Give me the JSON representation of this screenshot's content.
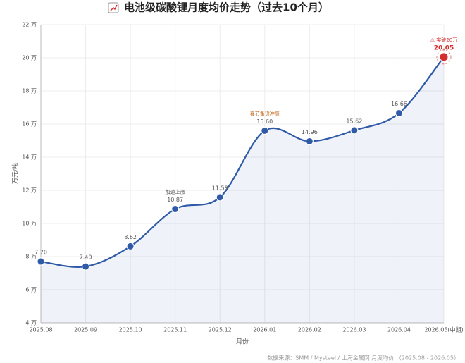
{
  "chart_data": {
    "type": "line",
    "title": "电池级碳酸锂月度均价走势（过去10个月）",
    "y_label": "万元/吨",
    "x_label": "月份",
    "source": "数据来源：SMM / Mysteel / 上海金属网 月度均价 （2025.08 - 2026.05）",
    "categories": [
      "2025.08",
      "2025.09",
      "2025.10",
      "2025.11",
      "2025.12",
      "2026.01",
      "2026.02",
      "2026.03",
      "2026.04",
      "2026.05(中期)"
    ],
    "values": [
      7.7,
      7.4,
      8.62,
      10.87,
      11.58,
      15.6,
      14.96,
      15.62,
      16.66,
      20.05
    ],
    "value_labels": [
      "7.70",
      "7.40",
      "8.62",
      "10.87",
      "11.58",
      "15.60",
      "14.96",
      "15.62",
      "16.66",
      "20.05"
    ],
    "annotations": [
      null,
      null,
      null,
      "加速上涨",
      null,
      "春节备货冲高",
      null,
      null,
      null,
      "⚠ 突破20万"
    ],
    "color": "#2f5aa8",
    "highlight_color": "#d32f2f",
    "annotation_color": "#c0661a",
    "ylim": [
      4,
      22
    ],
    "yticks": [
      {
        "value": 4,
        "label": "4 万"
      },
      {
        "value": 6,
        "label": "6 万"
      },
      {
        "value": 8,
        "label": "8 万"
      },
      {
        "value": 10,
        "label": "10 万"
      },
      {
        "value": 12,
        "label": "12 万"
      },
      {
        "value": 14,
        "label": "14 万"
      },
      {
        "value": 16,
        "label": "16 万"
      },
      {
        "value": 18,
        "label": "18 万"
      },
      {
        "value": 20,
        "label": "20 万"
      },
      {
        "value": 22,
        "label": "22 万"
      }
    ],
    "grid": true
  }
}
